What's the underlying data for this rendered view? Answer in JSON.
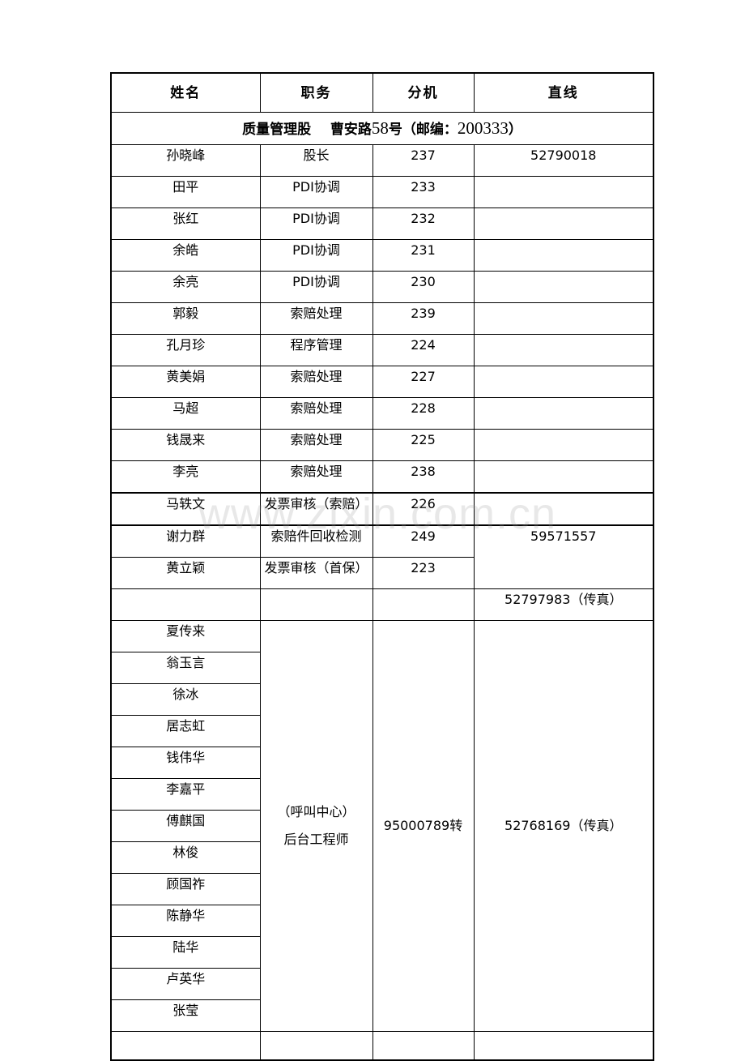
{
  "header": {
    "name": "姓名",
    "position": "职务",
    "extension": "分机",
    "direct": "直线"
  },
  "section": {
    "dept": "质量管理股",
    "address_prefix": "曹安路",
    "address_num": "58",
    "address_suffix": "号（邮编：",
    "postcode": "200333",
    "close": "）"
  },
  "rows": [
    {
      "name": "孙晓峰",
      "position": "股长",
      "ext": "237",
      "direct": "52790018"
    },
    {
      "name": "田平",
      "position": "PDI协调",
      "ext": "233",
      "direct": ""
    },
    {
      "name": "张红",
      "position": "PDI协调",
      "ext": "232",
      "direct": ""
    },
    {
      "name": "余皓",
      "position": "PDI协调",
      "ext": "231",
      "direct": ""
    },
    {
      "name": "余亮",
      "position": "PDI协调",
      "ext": "230",
      "direct": ""
    },
    {
      "name": "郭毅",
      "position": "索赔处理",
      "ext": "239",
      "direct": ""
    },
    {
      "name": "孔月珍",
      "position": "程序管理",
      "ext": "224",
      "direct": ""
    },
    {
      "name": "黄美娟",
      "position": "索赔处理",
      "ext": "227",
      "direct": ""
    },
    {
      "name": "马超",
      "position": "索赔处理",
      "ext": "228",
      "direct": ""
    },
    {
      "name": "钱晟来",
      "position": "索赔处理",
      "ext": "225",
      "direct": ""
    },
    {
      "name": "李亮",
      "position": "索赔处理",
      "ext": "238",
      "direct": ""
    },
    {
      "name": "马轶文",
      "position": "发票审核（索赔）",
      "ext": "226",
      "direct": ""
    },
    {
      "name": "谢力群",
      "position": "索赔件回收检测",
      "ext": "249",
      "direct": "59571557"
    },
    {
      "name": "黄立颖",
      "position": "发票审核（首保）",
      "ext": "223",
      "direct": ""
    },
    {
      "name": "",
      "position": "",
      "ext": "",
      "direct": "52797983（传真）"
    }
  ],
  "call_center": {
    "names": [
      "夏传来",
      "翁玉言",
      "徐冰",
      "居志虹",
      "钱伟华",
      "李嘉平",
      "傅麒国",
      "林俊",
      "顾国祚",
      "陈静华",
      "陆华",
      "卢英华",
      "张莹"
    ],
    "position_line1": "（呼叫中心）",
    "position_line2": "后台工程师",
    "ext": "95000789转",
    "direct": "52768169（传真）"
  },
  "watermark": "www.zixin.com.cn"
}
